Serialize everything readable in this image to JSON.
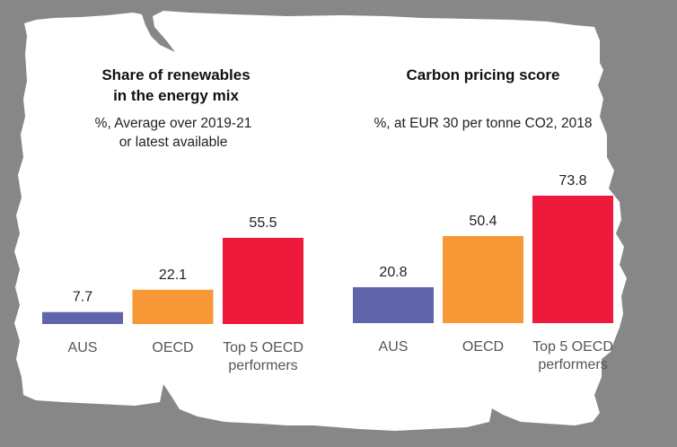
{
  "background_color": "#878787",
  "paper_color": "#ffffff",
  "chart_data": [
    {
      "type": "bar",
      "title": "Share of renewables in the energy mix",
      "title_lines": [
        "Share of renewables",
        "in the energy mix"
      ],
      "subtitle_lines": [
        "%, Average over 2019-21",
        "or latest available"
      ],
      "categories": [
        "AUS",
        "OECD",
        "Top 5 OECD performers"
      ],
      "category_lines": [
        [
          "AUS"
        ],
        [
          "OECD"
        ],
        [
          "Top 5 OECD",
          "performers"
        ]
      ],
      "values": [
        7.7,
        22.1,
        55.5
      ],
      "value_labels": [
        "7.7",
        "22.1",
        "55.5"
      ],
      "colors": [
        "#6064aa",
        "#f79735",
        "#ed1a3b"
      ],
      "xlabel": "",
      "ylabel": "",
      "ylim": [
        0,
        55.5
      ],
      "grid": false,
      "legend": "none"
    },
    {
      "type": "bar",
      "title": "Carbon pricing score",
      "title_lines": [
        "Carbon pricing score"
      ],
      "subtitle_lines": [
        "%, at EUR 30 per tonne CO2, 2018"
      ],
      "categories": [
        "AUS",
        "OECD",
        "Top 5 OECD performers"
      ],
      "category_lines": [
        [
          "AUS"
        ],
        [
          "OECD"
        ],
        [
          "Top 5 OECD",
          "performers"
        ]
      ],
      "values": [
        20.8,
        50.4,
        73.8
      ],
      "value_labels": [
        "20.8",
        "50.4",
        "73.8"
      ],
      "colors": [
        "#6064aa",
        "#f79735",
        "#ed1a3b"
      ],
      "xlabel": "",
      "ylabel": "",
      "ylim": [
        0,
        73.8
      ],
      "grid": false,
      "legend": "none"
    }
  ]
}
